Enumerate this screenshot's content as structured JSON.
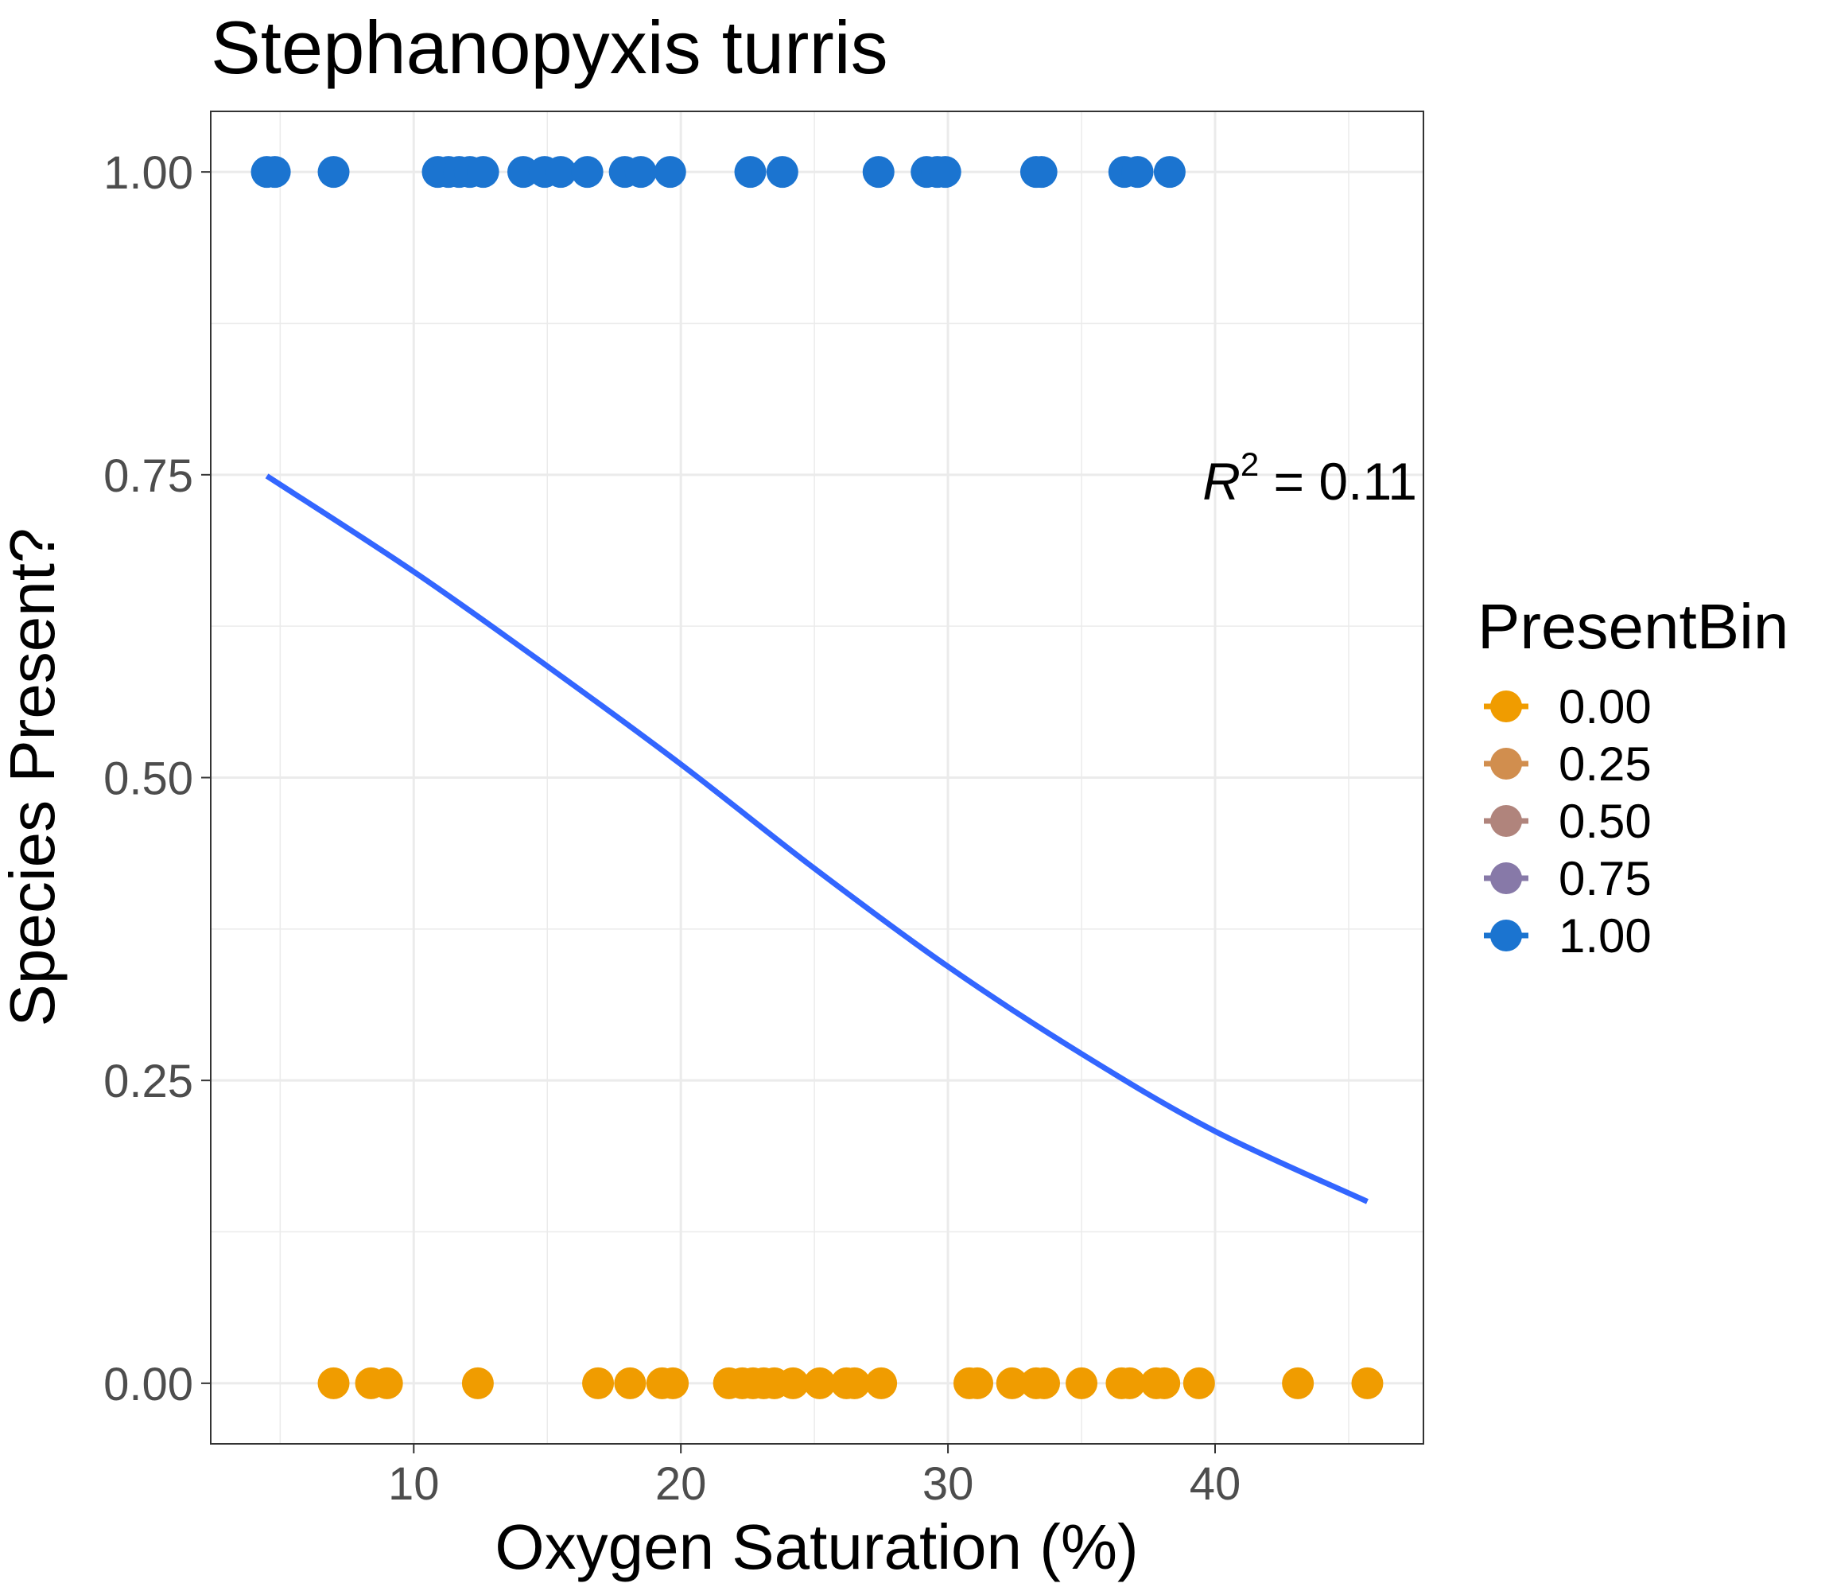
{
  "chart_data": {
    "type": "scatter",
    "title": "Stephanopyxis turris",
    "xlabel": "Oxygen Saturation (%)",
    "ylabel": "Species Present?",
    "xlim": [
      2.4,
      47.8
    ],
    "ylim": [
      -0.05,
      1.05
    ],
    "x_ticks": [
      10,
      20,
      30,
      40
    ],
    "x_tick_labels": [
      "10",
      "20",
      "30",
      "40"
    ],
    "y_ticks": [
      0,
      0.25,
      0.5,
      0.75,
      1.0
    ],
    "y_tick_labels": [
      "0.00",
      "0.25",
      "0.50",
      "0.75",
      "1.00"
    ],
    "grid": true,
    "legend": {
      "title": "PresentBin",
      "placement": "right",
      "entries": [
        {
          "label": "0.00",
          "color": "#F09C00"
        },
        {
          "label": "0.25",
          "color": "#D18E4E"
        },
        {
          "label": "0.50",
          "color": "#B0847C"
        },
        {
          "label": "0.75",
          "color": "#8779A8"
        },
        {
          "label": "1.00",
          "color": "#1B74D0"
        }
      ]
    },
    "series": [
      {
        "y": 1.0,
        "color": "#1B74D0",
        "x": [
          4.5,
          4.8,
          7.0,
          10.9,
          11.3,
          11.7,
          12.1,
          12.6,
          14.1,
          14.9,
          15.5,
          16.5,
          17.9,
          18.5,
          19.6,
          22.6,
          23.8,
          27.4,
          29.2,
          29.6,
          29.9,
          33.3,
          33.5,
          36.6,
          37.1,
          38.3
        ],
        "y_values_note": ""
      },
      {
        "y": 0.0,
        "color": "#F09C00",
        "x": [
          7.0,
          8.4,
          9.0,
          12.4,
          16.9,
          18.1,
          19.3,
          19.7,
          21.8,
          22.3,
          22.7,
          23.1,
          23.5,
          24.2,
          25.2,
          26.2,
          26.5,
          27.5,
          30.8,
          31.1,
          32.4,
          33.3,
          33.6,
          35.0,
          36.5,
          36.8,
          37.8,
          38.1,
          39.4,
          43.1,
          45.7
        ]
      }
    ],
    "fit_line": {
      "color": "#3366FF",
      "x": [
        4.5,
        10,
        15,
        20,
        25,
        30,
        35,
        40,
        45.7
      ],
      "y": [
        0.749,
        0.67,
        0.592,
        0.511,
        0.425,
        0.344,
        0.272,
        0.208,
        0.15
      ]
    },
    "annotation": {
      "base": "R",
      "sup": "2",
      "rest": " = 0.11"
    }
  }
}
